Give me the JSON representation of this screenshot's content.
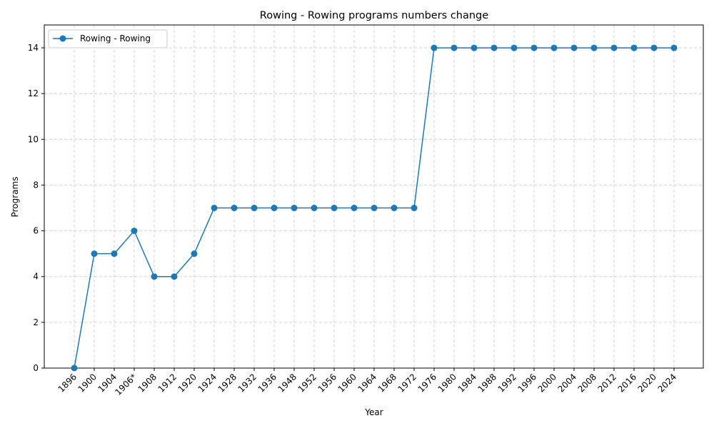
{
  "chart_data": {
    "type": "line",
    "title": "Rowing - Rowing programs numbers change",
    "xlabel": "Year",
    "ylabel": "Programs",
    "categories": [
      "1896",
      "1900",
      "1904",
      "1906*",
      "1908",
      "1912",
      "1920",
      "1924",
      "1928",
      "1932",
      "1936",
      "1948",
      "1952",
      "1956",
      "1960",
      "1964",
      "1968",
      "1972",
      "1976",
      "1980",
      "1984",
      "1988",
      "1992",
      "1996",
      "2000",
      "2004",
      "2008",
      "2012",
      "2016",
      "2020",
      "2024"
    ],
    "series": [
      {
        "name": "Rowing - Rowing",
        "values": [
          0,
          5,
          5,
          6,
          4,
          4,
          5,
          7,
          7,
          7,
          7,
          7,
          7,
          7,
          7,
          7,
          7,
          7,
          14,
          14,
          14,
          14,
          14,
          14,
          14,
          14,
          14,
          14,
          14,
          14,
          14
        ],
        "color": "#1f77b4",
        "marker": "circle"
      }
    ],
    "ylim": [
      0,
      15
    ],
    "yticks": [
      0,
      2,
      4,
      6,
      8,
      10,
      12,
      14
    ],
    "grid": true,
    "legend_position": "top-left"
  }
}
